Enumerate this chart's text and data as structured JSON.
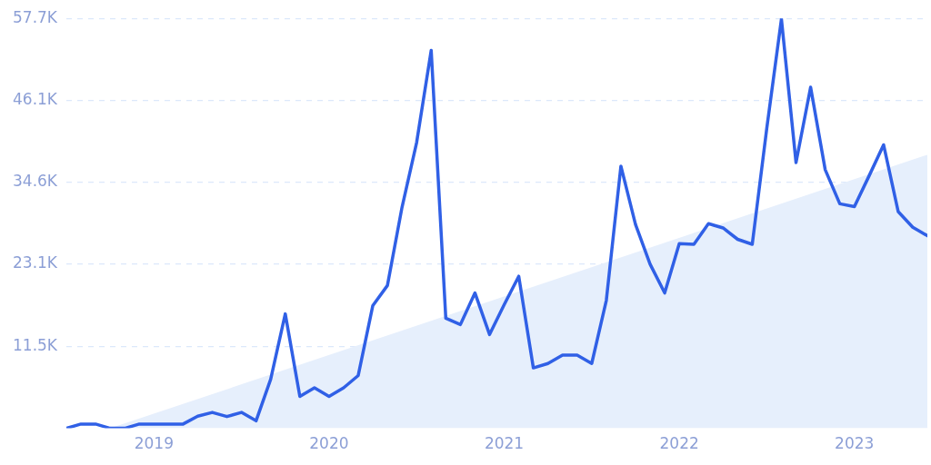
{
  "chart_data": {
    "type": "line",
    "marker": "none",
    "grid": "y",
    "xlim": [
      "2018-07",
      "2023-06"
    ],
    "xticks": [
      "2019",
      "2020",
      "2021",
      "2022",
      "2023"
    ],
    "ylim": [
      0,
      57700
    ],
    "yticks": [
      {
        "value": 11500,
        "label": "11.5K"
      },
      {
        "value": 23100,
        "label": "23.1K"
      },
      {
        "value": 34600,
        "label": "34.6K"
      },
      {
        "value": 46100,
        "label": "46.1K"
      },
      {
        "value": 57700,
        "label": "57.7K"
      }
    ],
    "series": [
      {
        "type": "area",
        "color": "#e6effc",
        "x": [
          "2018-10",
          "2023-06"
        ],
        "values": [
          0,
          38500
        ]
      },
      {
        "type": "line",
        "color": "#3060e6",
        "x": [
          "2018-07",
          "2018-08",
          "2018-09",
          "2018-10",
          "2018-11",
          "2018-12",
          "2019-01",
          "2019-02",
          "2019-03",
          "2019-04",
          "2019-05",
          "2019-06",
          "2019-07",
          "2019-08",
          "2019-09",
          "2019-10",
          "2019-11",
          "2019-12",
          "2020-01",
          "2020-02",
          "2020-03",
          "2020-04",
          "2020-05",
          "2020-06",
          "2020-07",
          "2020-08",
          "2020-09",
          "2020-10",
          "2020-11",
          "2020-12",
          "2021-01",
          "2021-02",
          "2021-03",
          "2021-04",
          "2021-05",
          "2021-06",
          "2021-07",
          "2021-08",
          "2021-09",
          "2021-10",
          "2021-11",
          "2021-12",
          "2022-01",
          "2022-02",
          "2022-03",
          "2022-04",
          "2022-05",
          "2022-06",
          "2022-07",
          "2022-08",
          "2022-09",
          "2022-10",
          "2022-11",
          "2022-12",
          "2023-01",
          "2023-02",
          "2023-03",
          "2023-04",
          "2023-05",
          "2023-06"
        ],
        "values": [
          0,
          600,
          600,
          0,
          0,
          600,
          600,
          600,
          600,
          1700,
          2240,
          1650,
          2240,
          1060,
          6890,
          16100,
          4480,
          5700,
          4480,
          5700,
          7430,
          17280,
          20100,
          31100,
          40200,
          53200,
          15500,
          14600,
          19050,
          13200,
          17400,
          21400,
          8500,
          9120,
          10300,
          10300,
          9120,
          18000,
          36900,
          28700,
          23100,
          19050,
          26000,
          25900,
          28800,
          28200,
          26600,
          25900,
          42300,
          57600,
          37400,
          48000,
          36400,
          31600,
          31200,
          35500,
          39900,
          30500,
          28300,
          27100
        ]
      }
    ]
  }
}
